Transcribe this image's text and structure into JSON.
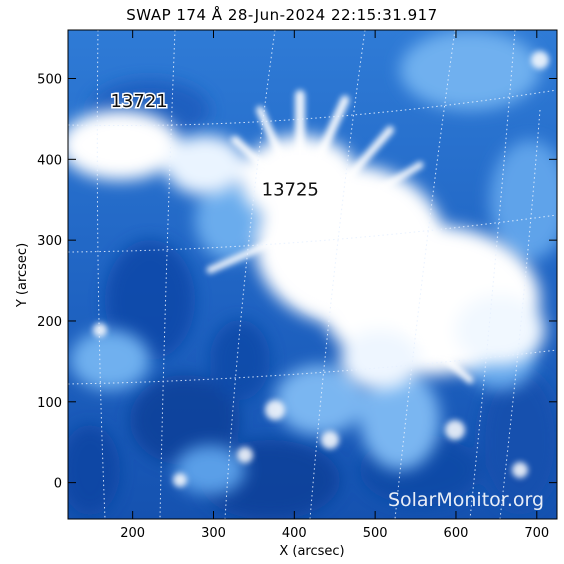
{
  "title": "SWAP 174 Å 28-Jun-2024 22:15:31.917",
  "xaxis": {
    "label": "X (arcsec)",
    "range": [
      120,
      725
    ],
    "ticks": [
      200,
      300,
      400,
      500,
      600,
      700
    ]
  },
  "yaxis": {
    "label": "Y (arcsec)",
    "range": [
      -45,
      560
    ],
    "ticks": [
      0,
      100,
      200,
      300,
      400,
      500
    ]
  },
  "regions": [
    {
      "label": "13721",
      "x": 208,
      "y": 465
    },
    {
      "label": "13725",
      "x": 395,
      "y": 355
    }
  ],
  "credit": "SolarMonitor.org",
  "colors": {
    "low": "#0d3f99",
    "mid": "#3a88df",
    "high": "#ffffff"
  }
}
